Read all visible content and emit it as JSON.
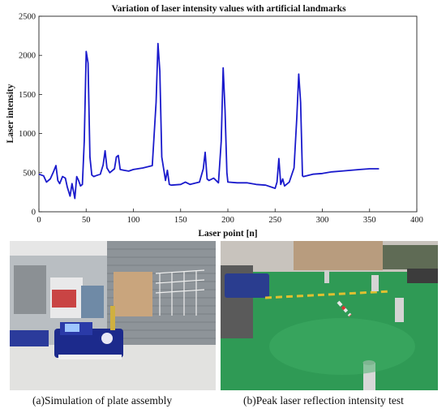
{
  "chart_data": {
    "type": "line",
    "title": "Variation of laser intensity values with artificial landmarks",
    "xlabel": "Laser point [n]",
    "ylabel": "Laser intensity",
    "xlim": [
      0,
      400
    ],
    "ylim": [
      0,
      2500
    ],
    "x_ticks": [
      0,
      50,
      100,
      150,
      200,
      250,
      300,
      350,
      400
    ],
    "y_ticks": [
      0,
      500,
      1000,
      1500,
      2000,
      2500
    ],
    "grid": false,
    "legend": "none",
    "series": [
      {
        "color": "#1a1acc",
        "x": [
          0,
          5,
          8,
          12,
          15,
          18,
          20,
          22,
          25,
          28,
          30,
          33,
          35,
          38,
          40,
          42,
          44,
          46,
          48,
          50,
          52,
          54,
          56,
          58,
          60,
          65,
          68,
          70,
          72,
          75,
          80,
          82,
          84,
          86,
          90,
          95,
          100,
          110,
          120,
          124,
          126,
          128,
          130,
          132,
          134,
          136,
          138,
          140,
          150,
          155,
          160,
          170,
          174,
          176,
          178,
          180,
          185,
          190,
          193,
          195,
          197,
          199,
          200,
          210,
          220,
          230,
          240,
          250,
          252,
          254,
          256,
          258,
          260,
          265,
          270,
          273,
          275,
          277,
          279,
          280,
          290,
          300,
          310,
          320,
          330,
          340,
          350,
          360
        ],
        "y": [
          480,
          460,
          380,
          420,
          500,
          590,
          400,
          360,
          450,
          430,
          320,
          200,
          360,
          170,
          450,
          400,
          330,
          350,
          900,
          2050,
          1900,
          700,
          470,
          450,
          460,
          480,
          600,
          780,
          560,
          500,
          550,
          700,
          720,
          540,
          530,
          520,
          540,
          560,
          590,
          1400,
          2150,
          1800,
          700,
          550,
          400,
          530,
          350,
          340,
          350,
          380,
          350,
          380,
          550,
          760,
          420,
          400,
          430,
          370,
          900,
          1840,
          1300,
          500,
          380,
          370,
          370,
          350,
          340,
          300,
          380,
          680,
          350,
          420,
          330,
          380,
          560,
          1200,
          1760,
          1400,
          460,
          450,
          480,
          490,
          510,
          520,
          530,
          540,
          550,
          550
        ]
      }
    ]
  },
  "figure": {
    "caption_a": "(a)Simulation of plate assembly",
    "caption_b": "(b)Peak laser reflection intensity test"
  }
}
